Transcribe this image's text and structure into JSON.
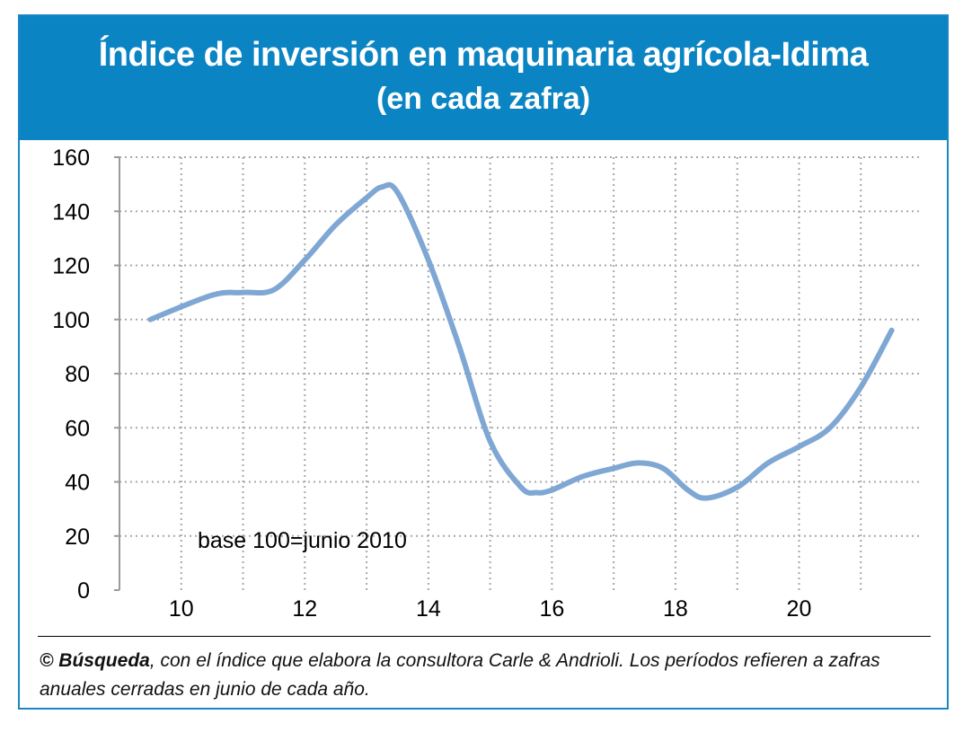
{
  "header": {
    "title": "Índice de inversión en maquinaria agrícola-Idima",
    "subtitle": "(en cada zafra)",
    "background_color": "#0a84c3"
  },
  "chart_data": {
    "type": "line",
    "title": "Índice de inversión en maquinaria agrícola-Idima",
    "subtitle": "(en cada zafra)",
    "xlabel": "",
    "ylabel": "",
    "xlim": [
      9,
      22
    ],
    "ylim": [
      0,
      160
    ],
    "x_ticks": [
      10,
      12,
      14,
      16,
      18,
      20
    ],
    "y_ticks": [
      0,
      20,
      40,
      60,
      80,
      100,
      120,
      140,
      160
    ],
    "grid": true,
    "annotation": "base 100=junio 2010",
    "series": [
      {
        "color": "#7fa7d3",
        "x": [
          9.5,
          10.5,
          11.0,
          11.5,
          12.0,
          12.5,
          13.0,
          13.25,
          13.5,
          14.0,
          14.5,
          15.0,
          15.5,
          15.75,
          16.0,
          16.5,
          17.0,
          17.4,
          17.8,
          18.2,
          18.5,
          19.0,
          19.5,
          20.0,
          20.5,
          21.0,
          21.5
        ],
        "y": [
          100,
          109,
          110,
          111,
          122,
          135,
          145,
          149,
          147,
          122,
          90,
          55,
          38,
          36,
          37,
          42,
          45,
          47,
          45,
          37,
          34,
          38,
          47,
          53,
          60,
          75,
          96
        ]
      }
    ]
  },
  "caption": {
    "brand": "© Búsqueda",
    "text": ", con el índice que elabora la consultora Carle & Andrioli. Los períodos refieren a zafras anuales cerradas en junio de cada año."
  }
}
